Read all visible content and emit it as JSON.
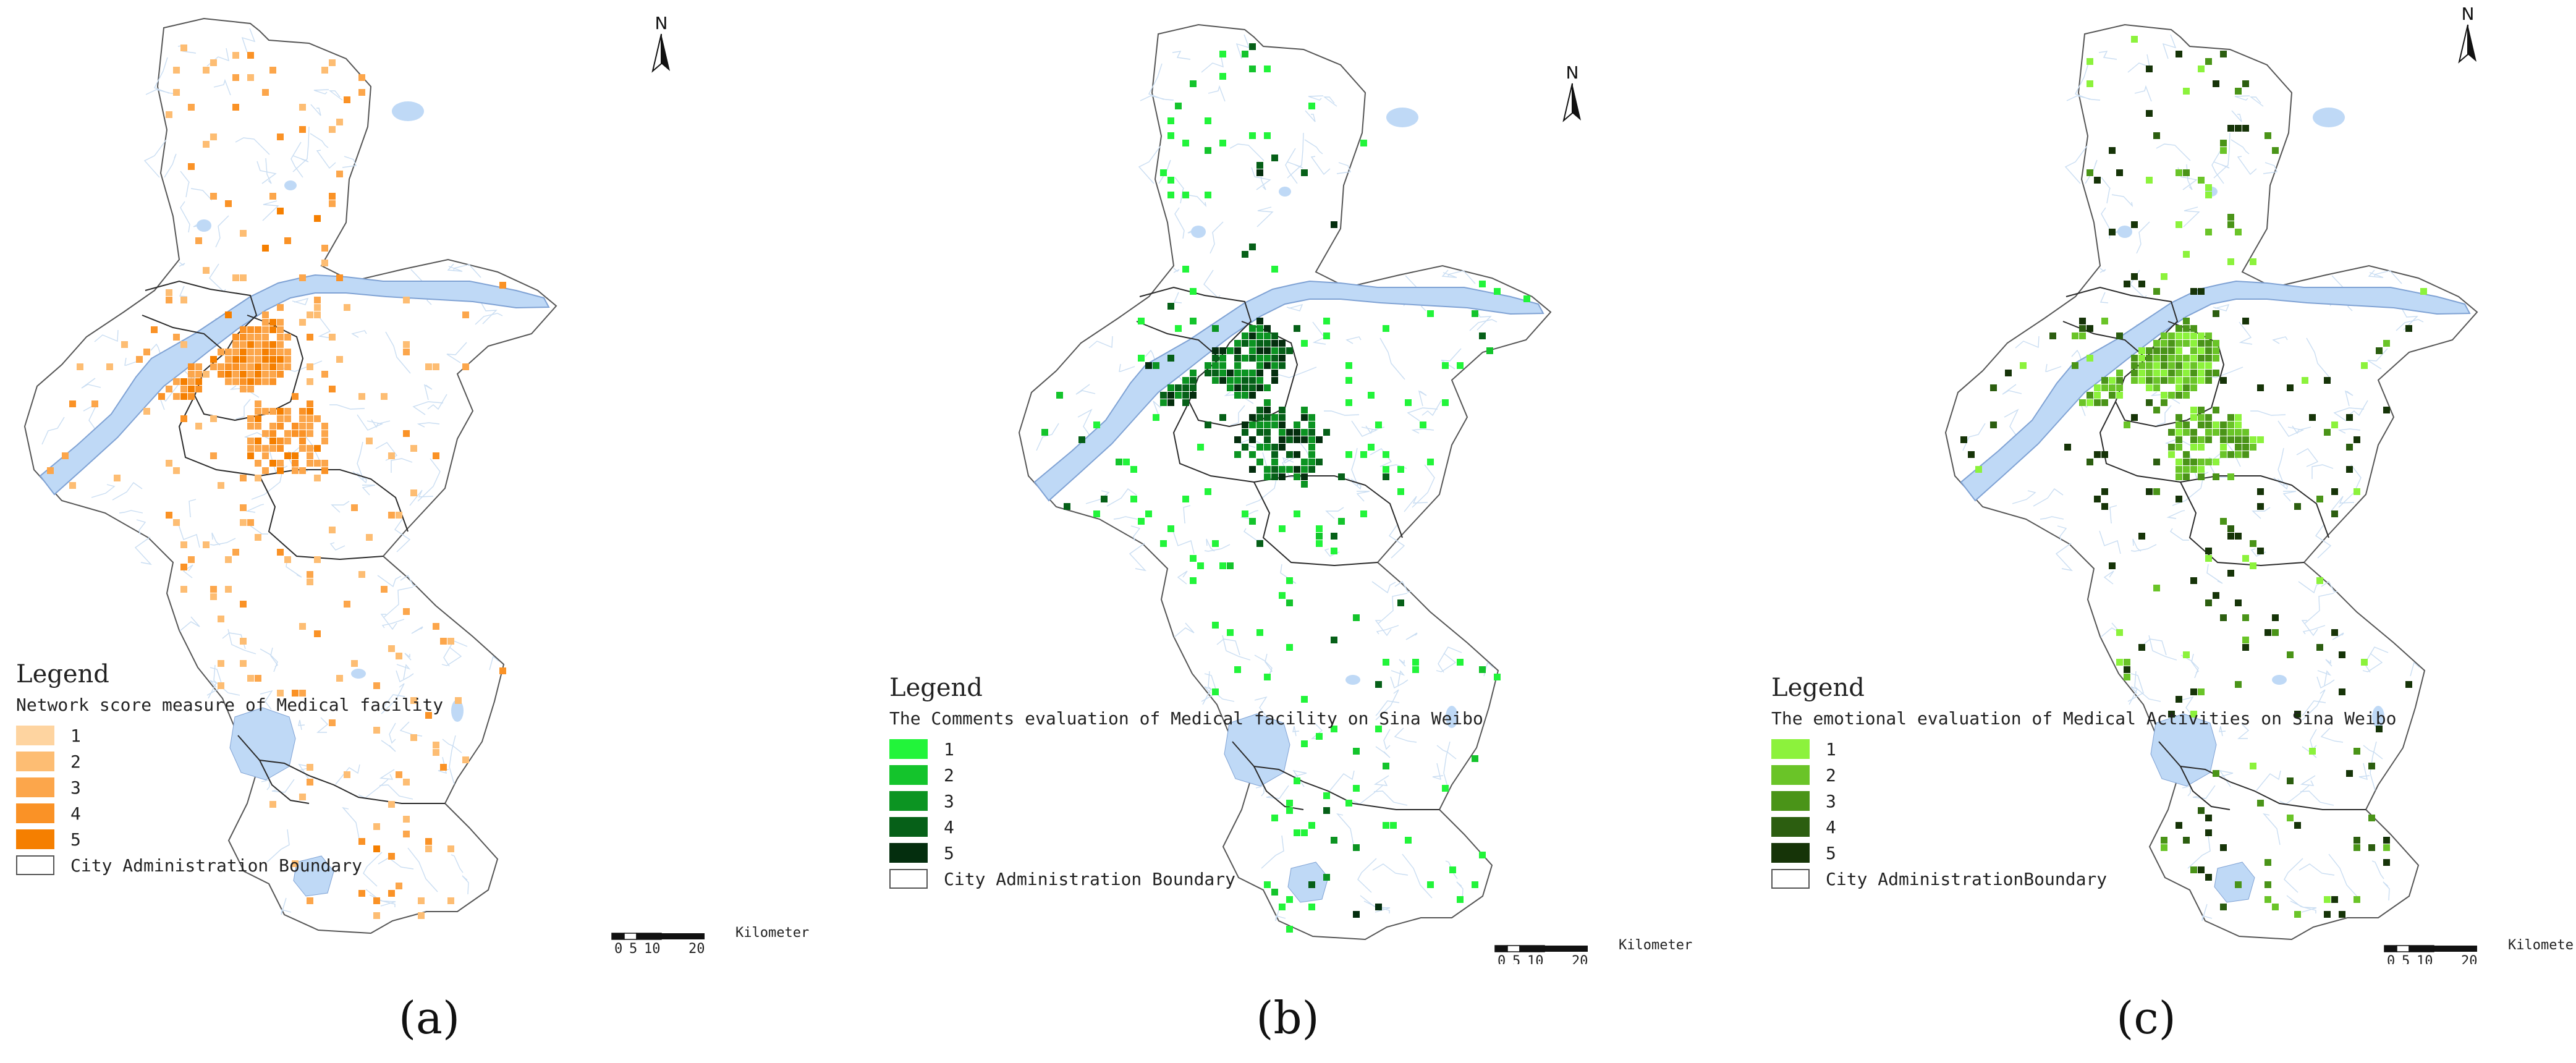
{
  "panels": [
    {
      "label": "(a)",
      "north": "N",
      "legend": {
        "title": "Legend",
        "subtitle": "Network score measure of Medical facility",
        "classes": [
          "1",
          "2",
          "3",
          "4",
          "5"
        ],
        "colors": [
          "#FED4A0",
          "#FDBD73",
          "#FCA64B",
          "#FA9226",
          "#F57F00"
        ],
        "boundary_label": "City Administration Boundary"
      },
      "scale": {
        "ticks": [
          "0",
          "5",
          "10",
          "20"
        ],
        "unit": "Kilometer"
      }
    },
    {
      "label": "(b)",
      "north": "N",
      "legend": {
        "title": "Legend",
        "subtitle": "The Comments evaluation of Medical facility on Sina Weibo",
        "classes": [
          "1",
          "2",
          "3",
          "4",
          "5"
        ],
        "colors": [
          "#22F43A",
          "#14C42C",
          "#0C9422",
          "#066018",
          "#042E0E"
        ],
        "boundary_label": "City Administration Boundary"
      },
      "scale": {
        "ticks": [
          "0",
          "5",
          "10",
          "20"
        ],
        "unit": "Kilometer"
      }
    },
    {
      "label": "(c)",
      "north": "N",
      "legend": {
        "title": "Legend",
        "subtitle": "The emotional evaluation of Medical Activities on Sina Weibo",
        "classes": [
          "1",
          "2",
          "3",
          "4",
          "5"
        ],
        "colors": [
          "#8CF23C",
          "#6AC428",
          "#4A9418",
          "#2C5E10",
          "#163408"
        ],
        "boundary_label": "City AdministrationBoundary"
      },
      "scale": {
        "ticks": [
          "0",
          "5",
          "10",
          "20"
        ],
        "unit": "Kilometer"
      }
    }
  ],
  "style": {
    "water": "#BFD9F6",
    "river_edge": "#7FA2D4",
    "boundary": "#555555",
    "district_line": "#2B2B2B",
    "stream": "#C9DDF2"
  }
}
